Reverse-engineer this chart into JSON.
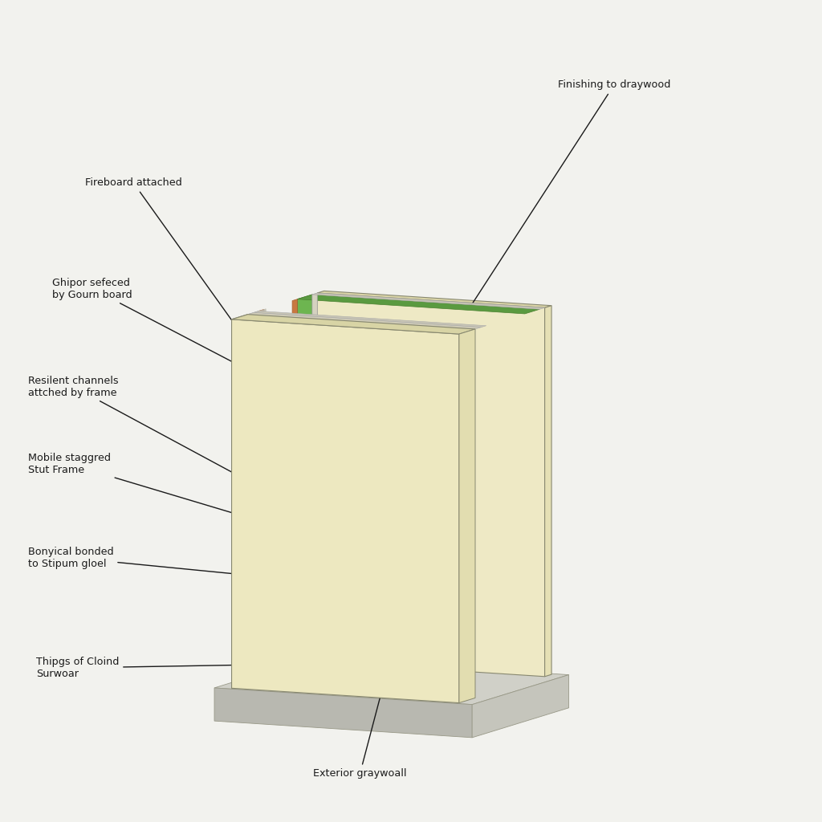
{
  "background_color": "#f2f2ee",
  "labels": {
    "finishing": "Finishing to draywood",
    "fireboard": "Fireboard attached",
    "ghipor": "Ghipor sefeced\nby Gourn board",
    "resilient": "Resilent channels\nattched by frame",
    "mobile": "Mobile staggred\nStut Frame",
    "bonylcal": "Bonyical bonded\nto Stipum gloel",
    "thipgs": "Thipgs of Cloind\nSurwoar",
    "exterior": "Exterior graywoall"
  },
  "colors": {
    "cream_front": "#ede8c0",
    "cream_front_top": "#d8d4a5",
    "cream_front_side": "#e2ddb0",
    "cream_back": "#eee9c5",
    "cream_back_top": "#dbd6a8",
    "cream_back_side": "#e5e0b5",
    "green_face": "#6db550",
    "green_top": "#5a9a40",
    "green_dark": "#4a8030",
    "gypsum_face": "#d5d2c0",
    "gypsum_edge": "#c8c5b5",
    "wood_light": "#c87840",
    "wood_dark": "#a86030",
    "wood_top": "#b86e38",
    "channel_light": "#ccc9ba",
    "channel_dark": "#b8b5a8",
    "floor_top": "#d0d0c8",
    "floor_front": "#b8b8b0",
    "floor_side": "#c5c5bc",
    "edge_color": "#888870",
    "outline": "#666655",
    "text_color": "#1a1a1a",
    "arrow_color": "#1a1a1a"
  }
}
